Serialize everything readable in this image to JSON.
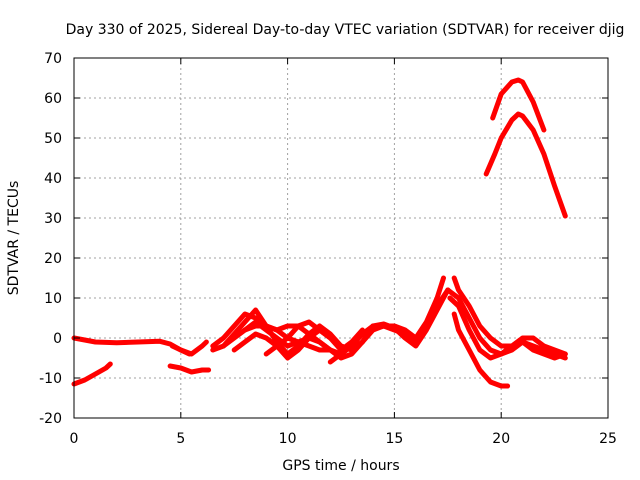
{
  "chart_data": {
    "type": "line",
    "title": "Day 330 of 2025, Sidereal Day-to-day VTEC variation (SDTVAR) for receiver djig",
    "xlabel": "GPS time / hours",
    "ylabel": "SDTVAR / TECUs",
    "xlim": [
      0,
      25
    ],
    "ylim": [
      -20,
      70
    ],
    "xticks": [
      0,
      5,
      10,
      15,
      20,
      25
    ],
    "yticks": [
      -20,
      -10,
      0,
      10,
      20,
      30,
      40,
      50,
      60,
      70
    ],
    "grid": true,
    "color": "#ff0000",
    "series": [
      {
        "name": "s1",
        "x": [
          0,
          0.5,
          1,
          2,
          3,
          4,
          4.5,
          5,
          5.4
        ],
        "y": [
          0,
          -0.5,
          -1,
          -1.2,
          -1,
          -0.8,
          -1.5,
          -3,
          -4
        ]
      },
      {
        "name": "s2",
        "x": [
          0,
          0.5,
          1,
          1.5,
          1.7
        ],
        "y": [
          -11.5,
          -10.5,
          -9,
          -7.5,
          -6.5
        ]
      },
      {
        "name": "s3",
        "x": [
          4.6,
          5,
          5.5,
          6,
          6.2
        ],
        "y": [
          -2,
          -3,
          -4,
          -2,
          -1
        ]
      },
      {
        "name": "s4",
        "x": [
          4.5,
          5,
          5.5,
          6,
          6.3
        ],
        "y": [
          -7,
          -7.5,
          -8.5,
          -8,
          -8
        ]
      },
      {
        "name": "s5",
        "x": [
          6.5,
          7,
          7.5,
          8,
          8.5,
          9,
          9.5,
          10,
          10.5,
          11,
          11.5,
          12
        ],
        "y": [
          -3,
          -2,
          0,
          2,
          3,
          3,
          2,
          0,
          -1,
          -2,
          -3,
          -3
        ]
      },
      {
        "name": "s6",
        "x": [
          6.5,
          7,
          7.5,
          8,
          8.5,
          9,
          9.5,
          10,
          10.5,
          11,
          11.5,
          12,
          12.5,
          13
        ],
        "y": [
          -2,
          0,
          3,
          6,
          5,
          3,
          2,
          3,
          3,
          1,
          -1,
          -3,
          -4,
          -2
        ]
      },
      {
        "name": "s7",
        "x": [
          7,
          7.5,
          8,
          8.5,
          9,
          9.5,
          10,
          10.5,
          11,
          11.5,
          12,
          12.5,
          13
        ],
        "y": [
          -2,
          1,
          4,
          7,
          3,
          -1,
          -4,
          -2,
          1,
          3,
          1,
          -2,
          -3
        ]
      },
      {
        "name": "s8",
        "x": [
          7.5,
          8,
          8.5,
          9,
          9.5,
          10,
          10.5,
          11,
          11.5,
          12,
          12.5,
          13,
          13.5
        ],
        "y": [
          -3,
          -1,
          1,
          0,
          -2,
          -5,
          -3,
          0,
          2,
          0,
          -3,
          -1,
          2
        ]
      },
      {
        "name": "s9",
        "x": [
          8,
          8.5,
          9,
          9.5,
          10,
          10.5,
          11,
          11.5,
          12,
          12.5,
          13,
          13.5
        ],
        "y": [
          2,
          4,
          2,
          0,
          -2,
          -1,
          0,
          -1,
          -3,
          -5,
          -4,
          -1
        ]
      },
      {
        "name": "s10",
        "x": [
          9,
          9.5,
          10,
          10.5,
          11,
          11.5,
          12,
          12.5,
          13,
          13.5,
          14
        ],
        "y": [
          -4,
          -2,
          0,
          3,
          4,
          2,
          0,
          -2,
          -3,
          -1,
          3
        ]
      },
      {
        "name": "s11",
        "x": [
          12,
          12.5,
          13,
          13.5,
          14,
          14.5,
          15,
          15.5,
          16,
          16.5,
          17,
          17.5
        ],
        "y": [
          -6,
          -4,
          -2,
          1,
          3,
          3,
          2,
          1,
          -1,
          3,
          8,
          12
        ]
      },
      {
        "name": "s12",
        "x": [
          13,
          13.5,
          14,
          14.5,
          15,
          15.5,
          16,
          16.5,
          17,
          17.3
        ],
        "y": [
          -3,
          -1,
          2,
          3,
          3,
          2,
          0,
          4,
          10,
          15
        ]
      },
      {
        "name": "s13",
        "x": [
          14,
          14.5,
          15,
          15.5,
          16,
          16.5,
          17,
          17.5
        ],
        "y": [
          3,
          3.5,
          2.5,
          0,
          -2,
          2,
          7,
          12
        ]
      },
      {
        "name": "s14",
        "x": [
          17.5,
          18,
          18.5,
          19,
          19.5,
          20,
          20.5,
          21,
          21.5,
          22,
          22.5,
          23
        ],
        "y": [
          12,
          10,
          5,
          0,
          -3,
          -4,
          -3,
          -1,
          -2,
          -3,
          -4,
          -5
        ]
      },
      {
        "name": "s15",
        "x": [
          17.8,
          18,
          18.5,
          19,
          19.5,
          20,
          20.5,
          21,
          21.5,
          22,
          22.5,
          23
        ],
        "y": [
          15,
          12,
          8,
          3,
          0,
          -2,
          -2,
          0,
          0,
          -2,
          -3,
          -4
        ]
      },
      {
        "name": "s16",
        "x": [
          17.6,
          18,
          18.5,
          19,
          19.5,
          20,
          20.5,
          21,
          21.5,
          22,
          22.5,
          23
        ],
        "y": [
          10,
          8,
          2,
          -3,
          -5,
          -4,
          -2,
          -1,
          -3,
          -4,
          -5,
          -4
        ]
      },
      {
        "name": "s17",
        "x": [
          17.8,
          18,
          18.5,
          19,
          19.5,
          20,
          20.3
        ],
        "y": [
          6,
          2,
          -3,
          -8,
          -11,
          -12,
          -12
        ]
      },
      {
        "name": "s18",
        "x": [
          19.6,
          20,
          20.5,
          20.8,
          21,
          21.5,
          22
        ],
        "y": [
          55,
          61,
          64,
          64.5,
          64,
          59,
          52
        ]
      },
      {
        "name": "s19",
        "x": [
          19.3,
          19.7,
          20,
          20.5,
          20.8,
          21,
          21.5,
          22,
          22.5,
          23
        ],
        "y": [
          41,
          46,
          50,
          54.5,
          56,
          55.5,
          52,
          46,
          38,
          30.5
        ]
      }
    ]
  }
}
